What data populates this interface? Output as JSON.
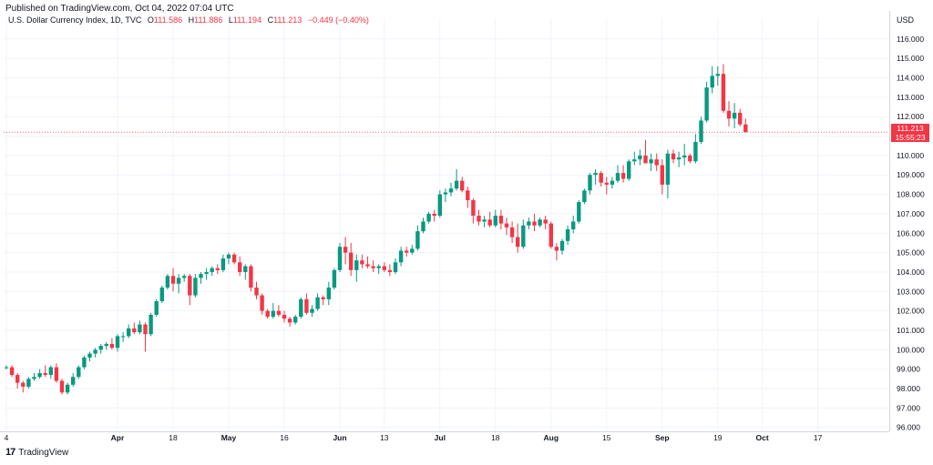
{
  "header": {
    "published": "Published on TradingView.com, Oct 04, 2022 07:04 UTC"
  },
  "legend": {
    "symbol": "U.S. Dollar Currency Index, 1D, TVC",
    "open_label": "O",
    "open": "111.586",
    "high_label": "H",
    "high": "111.886",
    "low_label": "L",
    "low": "111.194",
    "close_label": "C",
    "close": "111.213",
    "change": "−0.449 (−0.40%)"
  },
  "price_axis": {
    "currency": "USD"
  },
  "last_price": {
    "value": "111.213",
    "countdown": "15:55:23"
  },
  "brand": {
    "logo": "17",
    "name": "TradingView"
  },
  "colors": {
    "up": "#089981",
    "down": "#f23645",
    "grid": "#f0f3fa",
    "text": "#131722"
  },
  "chart_data": {
    "type": "candlestick",
    "y_ticks": [
      96,
      97,
      98,
      99,
      100,
      101,
      102,
      103,
      104,
      105,
      106,
      107,
      108,
      109,
      110,
      111,
      112,
      113,
      114,
      115,
      116
    ],
    "y_tick_labels": [
      "96.000",
      "97.000",
      "98.000",
      "99.000",
      "100.000",
      "101.000",
      "102.000",
      "103.000",
      "104.000",
      "105.000",
      "106.000",
      "107.000",
      "108.000",
      "109.000",
      "110.000",
      "111.000",
      "112.000",
      "113.000",
      "114.000",
      "115.000",
      "116.000"
    ],
    "ylim": [
      95.8,
      116.6
    ],
    "x_ticks": [
      {
        "label": "4",
        "idx": 0
      },
      {
        "label": "Apr",
        "idx": 20
      },
      {
        "label": "18",
        "idx": 30
      },
      {
        "label": "May",
        "idx": 40
      },
      {
        "label": "16",
        "idx": 50
      },
      {
        "label": "Jun",
        "idx": 60
      },
      {
        "label": "13",
        "idx": 68
      },
      {
        "label": "Jul",
        "idx": 78
      },
      {
        "label": "18",
        "idx": 88
      },
      {
        "label": "Aug",
        "idx": 98
      },
      {
        "label": "15",
        "idx": 108
      },
      {
        "label": "Sep",
        "idx": 118
      },
      {
        "label": "19",
        "idx": 128
      },
      {
        "label": "Oct",
        "idx": 136
      },
      {
        "label": "17",
        "idx": 146
      }
    ],
    "candles": [
      [
        99.1,
        99.2,
        99.0,
        99.1
      ],
      [
        99.1,
        99.2,
        98.6,
        98.7
      ],
      [
        98.7,
        98.8,
        98.0,
        98.3
      ],
      [
        98.3,
        98.4,
        97.8,
        98.1
      ],
      [
        98.1,
        98.6,
        98.0,
        98.5
      ],
      [
        98.5,
        98.8,
        98.4,
        98.6
      ],
      [
        98.6,
        99.0,
        98.5,
        98.8
      ],
      [
        98.8,
        99.2,
        98.6,
        98.7
      ],
      [
        98.7,
        99.2,
        98.5,
        99.1
      ],
      [
        99.1,
        99.3,
        98.3,
        98.4
      ],
      [
        98.4,
        98.5,
        97.7,
        97.8
      ],
      [
        97.8,
        98.3,
        97.7,
        98.2
      ],
      [
        98.2,
        98.8,
        98.1,
        98.6
      ],
      [
        98.6,
        99.2,
        98.5,
        99.1
      ],
      [
        99.1,
        99.7,
        99.0,
        99.6
      ],
      [
        99.6,
        99.9,
        99.4,
        99.8
      ],
      [
        99.8,
        100.1,
        99.6,
        100.0
      ],
      [
        100.0,
        100.3,
        99.8,
        100.2
      ],
      [
        100.2,
        100.4,
        100.0,
        100.3
      ],
      [
        100.3,
        100.6,
        100.0,
        100.1
      ],
      [
        100.1,
        100.8,
        99.9,
        100.7
      ],
      [
        100.7,
        100.9,
        100.4,
        100.7
      ],
      [
        100.7,
        101.3,
        100.6,
        101.1
      ],
      [
        101.1,
        101.4,
        100.8,
        100.9
      ],
      [
        100.9,
        101.5,
        100.8,
        101.3
      ],
      [
        101.3,
        101.4,
        99.9,
        100.8
      ],
      [
        100.8,
        101.9,
        100.7,
        101.8
      ],
      [
        101.8,
        102.6,
        101.7,
        102.5
      ],
      [
        102.5,
        103.3,
        102.4,
        103.2
      ],
      [
        103.2,
        103.9,
        103.1,
        103.8
      ],
      [
        103.8,
        104.2,
        103.0,
        103.4
      ],
      [
        103.4,
        103.9,
        102.9,
        103.7
      ],
      [
        103.7,
        103.9,
        103.5,
        103.8
      ],
      [
        103.8,
        103.9,
        102.3,
        102.8
      ],
      [
        102.8,
        103.9,
        102.7,
        103.7
      ],
      [
        103.7,
        104.0,
        103.4,
        103.9
      ],
      [
        103.9,
        104.2,
        103.6,
        104.0
      ],
      [
        104.0,
        104.3,
        103.8,
        104.2
      ],
      [
        104.2,
        104.4,
        103.9,
        104.1
      ],
      [
        104.1,
        104.9,
        104.0,
        104.7
      ],
      [
        104.7,
        105.0,
        104.4,
        104.9
      ],
      [
        104.9,
        105.0,
        104.4,
        104.5
      ],
      [
        104.5,
        104.8,
        103.8,
        104.0
      ],
      [
        104.0,
        104.4,
        103.6,
        104.3
      ],
      [
        104.3,
        104.4,
        103.0,
        103.2
      ],
      [
        103.2,
        103.5,
        102.6,
        102.8
      ],
      [
        102.8,
        102.9,
        101.8,
        102.0
      ],
      [
        102.0,
        102.1,
        101.6,
        101.7
      ],
      [
        101.7,
        102.4,
        101.6,
        102.0
      ],
      [
        102.0,
        102.3,
        101.7,
        101.8
      ],
      [
        101.8,
        102.0,
        101.4,
        101.6
      ],
      [
        101.6,
        101.7,
        101.2,
        101.4
      ],
      [
        101.4,
        101.8,
        101.3,
        101.7
      ],
      [
        101.7,
        102.7,
        101.6,
        102.6
      ],
      [
        102.6,
        102.9,
        101.8,
        101.9
      ],
      [
        101.9,
        102.3,
        101.7,
        102.1
      ],
      [
        102.1,
        102.9,
        102.0,
        102.7
      ],
      [
        102.7,
        102.8,
        102.3,
        102.6
      ],
      [
        102.6,
        103.5,
        102.3,
        103.2
      ],
      [
        103.2,
        104.2,
        103.1,
        104.1
      ],
      [
        104.1,
        105.5,
        104.0,
        105.3
      ],
      [
        105.3,
        105.8,
        104.4,
        105.0
      ],
      [
        105.0,
        105.5,
        103.8,
        104.1
      ],
      [
        104.1,
        104.9,
        103.5,
        104.6
      ],
      [
        104.6,
        104.9,
        104.2,
        104.4
      ],
      [
        104.4,
        104.8,
        104.2,
        104.3
      ],
      [
        104.3,
        104.6,
        104.0,
        104.2
      ],
      [
        104.2,
        104.4,
        103.9,
        104.3
      ],
      [
        104.3,
        104.5,
        104.0,
        104.1
      ],
      [
        104.1,
        104.4,
        103.8,
        104.0
      ],
      [
        104.0,
        104.7,
        103.9,
        104.5
      ],
      [
        104.5,
        105.3,
        104.3,
        105.1
      ],
      [
        105.1,
        105.3,
        104.8,
        105.0
      ],
      [
        105.0,
        105.4,
        104.9,
        105.2
      ],
      [
        105.2,
        106.4,
        105.1,
        106.1
      ],
      [
        106.1,
        106.8,
        106.0,
        106.6
      ],
      [
        106.6,
        107.1,
        106.5,
        107.0
      ],
      [
        107.0,
        107.2,
        106.6,
        106.9
      ],
      [
        106.9,
        108.2,
        106.8,
        108.0
      ],
      [
        108.0,
        108.3,
        107.6,
        108.1
      ],
      [
        108.1,
        108.6,
        107.9,
        108.3
      ],
      [
        108.3,
        109.3,
        108.2,
        108.7
      ],
      [
        108.7,
        108.9,
        108.1,
        108.2
      ],
      [
        108.2,
        108.4,
        107.3,
        107.7
      ],
      [
        107.7,
        107.8,
        106.5,
        106.9
      ],
      [
        106.9,
        107.2,
        106.4,
        106.6
      ],
      [
        106.6,
        106.9,
        106.3,
        106.7
      ],
      [
        106.7,
        107.1,
        106.3,
        106.4
      ],
      [
        106.4,
        107.2,
        106.3,
        106.9
      ],
      [
        106.9,
        107.2,
        106.2,
        106.5
      ],
      [
        106.5,
        106.8,
        105.9,
        106.3
      ],
      [
        106.3,
        106.6,
        105.5,
        105.8
      ],
      [
        105.8,
        106.5,
        105.0,
        105.3
      ],
      [
        105.3,
        106.7,
        105.2,
        106.4
      ],
      [
        106.4,
        106.8,
        106.2,
        106.6
      ],
      [
        106.6,
        107.0,
        106.1,
        106.4
      ],
      [
        106.4,
        106.8,
        106.3,
        106.7
      ],
      [
        106.7,
        106.9,
        106.2,
        106.5
      ],
      [
        106.5,
        106.6,
        105.2,
        105.3
      ],
      [
        105.3,
        105.5,
        104.6,
        105.1
      ],
      [
        105.1,
        105.7,
        104.9,
        105.6
      ],
      [
        105.6,
        106.4,
        105.4,
        106.2
      ],
      [
        106.2,
        106.9,
        106.0,
        106.6
      ],
      [
        106.6,
        107.7,
        106.5,
        107.6
      ],
      [
        107.6,
        108.3,
        107.5,
        108.2
      ],
      [
        108.2,
        109.1,
        108.0,
        109.0
      ],
      [
        109.0,
        109.3,
        108.5,
        109.1
      ],
      [
        109.1,
        109.2,
        108.4,
        108.6
      ],
      [
        108.6,
        108.9,
        108.0,
        108.5
      ],
      [
        108.5,
        108.9,
        108.3,
        108.7
      ],
      [
        108.7,
        109.5,
        108.6,
        109.1
      ],
      [
        109.1,
        109.5,
        108.6,
        108.8
      ],
      [
        108.8,
        109.8,
        108.7,
        109.7
      ],
      [
        109.7,
        110.2,
        109.5,
        109.8
      ],
      [
        109.8,
        110.3,
        109.5,
        110.0
      ],
      [
        110.0,
        110.8,
        109.7,
        109.6
      ],
      [
        109.6,
        110.1,
        109.2,
        109.8
      ],
      [
        109.8,
        110.1,
        109.2,
        109.5
      ],
      [
        109.5,
        109.8,
        108.0,
        108.5
      ],
      [
        108.5,
        110.3,
        107.8,
        110.1
      ],
      [
        110.1,
        110.3,
        109.6,
        109.8
      ],
      [
        109.8,
        110.2,
        109.4,
        109.9
      ],
      [
        109.9,
        110.6,
        109.5,
        110.0
      ],
      [
        110.0,
        110.1,
        109.6,
        109.7
      ],
      [
        109.7,
        111.1,
        109.6,
        110.7
      ],
      [
        110.7,
        112.0,
        110.6,
        111.8
      ],
      [
        111.8,
        113.8,
        111.7,
        113.5
      ],
      [
        113.5,
        114.6,
        113.2,
        114.1
      ],
      [
        114.1,
        114.6,
        113.6,
        114.2
      ],
      [
        114.2,
        114.7,
        112.2,
        112.3
      ],
      [
        112.3,
        112.8,
        111.5,
        111.9
      ],
      [
        111.9,
        112.7,
        111.4,
        112.2
      ],
      [
        112.2,
        112.4,
        111.5,
        111.6
      ],
      [
        111.6,
        111.9,
        111.2,
        111.2
      ]
    ]
  }
}
